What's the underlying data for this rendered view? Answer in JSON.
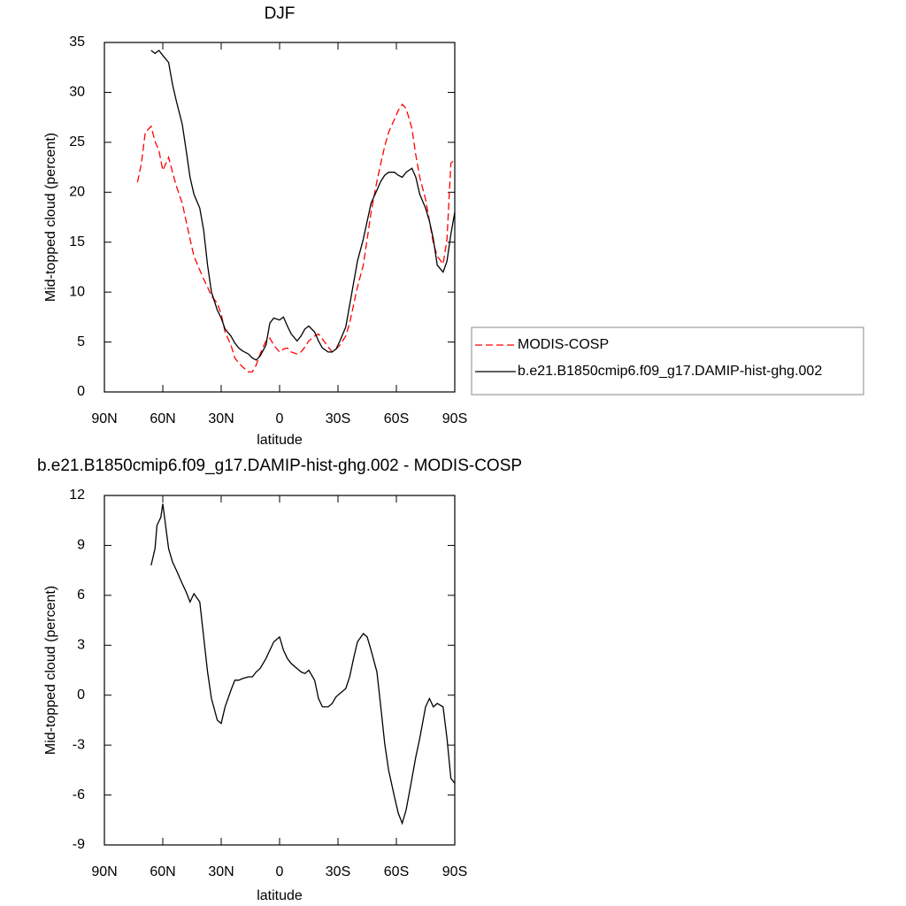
{
  "chart_data": [
    {
      "type": "line",
      "title": "DJF",
      "xlabel": "latitude",
      "ylabel": "Mid-topped cloud (percent)",
      "xlim": [
        90,
        -90
      ],
      "xticks": [
        {
          "value": 90,
          "label": "90N"
        },
        {
          "value": 60,
          "label": "60N"
        },
        {
          "value": 30,
          "label": "30N"
        },
        0,
        {
          "value": -30,
          "label": "30S"
        },
        {
          "value": -60,
          "label": "60S"
        },
        {
          "value": -90,
          "label": "90S"
        }
      ],
      "ylim": [
        0,
        35
      ],
      "yticks": [
        0,
        5,
        10,
        15,
        20,
        25,
        30,
        35
      ],
      "legend": "right",
      "x": [
        73,
        71,
        69,
        66,
        64,
        62,
        60,
        57,
        55,
        53,
        50,
        48,
        46,
        44,
        41,
        39,
        37,
        35,
        32,
        30,
        28,
        25,
        23,
        21,
        19,
        16,
        14,
        12,
        10,
        7,
        5,
        3,
        0,
        -2,
        -4,
        -6,
        -9,
        -11,
        -13,
        -15,
        -18,
        -20,
        -22,
        -25,
        -27,
        -29,
        -31,
        -34,
        -36,
        -38,
        -40,
        -43,
        -45,
        -47,
        -50,
        -52,
        -54,
        -56,
        -59,
        -61,
        -63,
        -65,
        -68,
        -70,
        -72,
        -75,
        -77,
        -79,
        -81,
        -84,
        -86,
        -88,
        -90
      ],
      "series": [
        {
          "name": "MODIS-COSP",
          "color": "#ff0000",
          "linestyle": "dashed",
          "values": [
            21.0,
            22.9,
            26.0,
            26.6,
            25.1,
            24.2,
            22.2,
            23.5,
            22.0,
            20.6,
            18.9,
            17.1,
            15.3,
            13.6,
            12.2,
            11.3,
            10.5,
            9.6,
            8.9,
            7.8,
            6.0,
            4.7,
            3.4,
            2.9,
            2.5,
            2.0,
            2.0,
            2.7,
            3.8,
            5.1,
            5.4,
            4.7,
            4.0,
            4.3,
            4.4,
            4.0,
            3.8,
            4.0,
            4.5,
            5.1,
            5.6,
            5.8,
            5.3,
            4.5,
            4.0,
            4.3,
            4.7,
            5.6,
            6.9,
            8.7,
            10.5,
            12.7,
            15.3,
            18.0,
            21.1,
            22.9,
            24.6,
            26.0,
            27.3,
            28.2,
            28.8,
            28.4,
            26.4,
            23.7,
            21.5,
            19.3,
            17.1,
            14.9,
            13.6,
            12.8,
            15.3,
            22.9,
            23.3
          ]
        },
        {
          "name": "b.e21.B1850cmip6.f09_g17.DAMIP-hist-ghg.002",
          "color": "#000000",
          "linestyle": "solid",
          "values": [
            null,
            null,
            null,
            34.2,
            33.9,
            34.2,
            33.7,
            33.0,
            30.8,
            29.1,
            26.8,
            24.2,
            21.5,
            19.8,
            18.4,
            16.2,
            12.7,
            10.0,
            8.2,
            7.4,
            6.3,
            5.6,
            4.9,
            4.4,
            4.1,
            3.8,
            3.4,
            3.2,
            3.6,
            4.7,
            6.9,
            7.4,
            7.2,
            7.5,
            6.6,
            5.8,
            5.1,
            5.6,
            6.3,
            6.6,
            6.0,
            5.1,
            4.4,
            4.0,
            4.0,
            4.3,
            5.1,
            6.5,
            8.7,
            10.9,
            13.1,
            15.3,
            17.1,
            18.9,
            20.2,
            21.1,
            21.7,
            22.0,
            22.0,
            21.7,
            21.5,
            22.0,
            22.4,
            21.5,
            19.8,
            18.4,
            17.1,
            15.3,
            12.7,
            12.0,
            13.1,
            15.8,
            18.0
          ]
        }
      ]
    },
    {
      "type": "line",
      "title": "b.e21.B1850cmip6.f09_g17.DAMIP-hist-ghg.002 - MODIS-COSP",
      "xlabel": "latitude",
      "ylabel": "Mid-topped cloud (percent)",
      "xlim": [
        90,
        -90
      ],
      "xticks": [
        {
          "value": 90,
          "label": "90N"
        },
        {
          "value": 60,
          "label": "60N"
        },
        {
          "value": 30,
          "label": "30N"
        },
        0,
        {
          "value": -30,
          "label": "30S"
        },
        {
          "value": -60,
          "label": "60S"
        },
        {
          "value": -90,
          "label": "90S"
        }
      ],
      "ylim": [
        -9,
        12
      ],
      "yticks": [
        -9,
        -6,
        -3,
        0,
        3,
        6,
        9,
        12
      ],
      "x": [
        66,
        64,
        63,
        61,
        60,
        57,
        55,
        53,
        50,
        48,
        46,
        44,
        41,
        39,
        37,
        35,
        32,
        30,
        28,
        25,
        23,
        21,
        19,
        16,
        14,
        12,
        10,
        7,
        5,
        3,
        0,
        -2,
        -4,
        -6,
        -9,
        -11,
        -13,
        -15,
        -18,
        -20,
        -22,
        -25,
        -27,
        -29,
        -31,
        -34,
        -36,
        -38,
        -40,
        -43,
        -45,
        -47,
        -50,
        -52,
        -54,
        -56,
        -59,
        -61,
        -63,
        -65,
        -68,
        -70,
        -72,
        -75,
        -77,
        -79,
        -81,
        -84,
        -86,
        -88,
        -90
      ],
      "series": [
        {
          "color": "#000000",
          "linestyle": "solid",
          "values": [
            7.8,
            8.8,
            10.2,
            10.7,
            11.5,
            8.8,
            8.0,
            7.5,
            6.7,
            6.2,
            5.6,
            6.1,
            5.6,
            3.5,
            1.4,
            -0.2,
            -1.5,
            -1.7,
            -0.7,
            0.3,
            0.9,
            0.9,
            1.0,
            1.1,
            1.1,
            1.4,
            1.6,
            2.2,
            2.7,
            3.2,
            3.5,
            2.7,
            2.2,
            1.9,
            1.6,
            1.4,
            1.3,
            1.5,
            0.9,
            -0.2,
            -0.7,
            -0.7,
            -0.5,
            -0.1,
            0.1,
            0.4,
            1.1,
            2.2,
            3.2,
            3.7,
            3.5,
            2.7,
            1.4,
            -0.7,
            -2.9,
            -4.5,
            -6.1,
            -7.1,
            -7.7,
            -6.9,
            -5.0,
            -3.7,
            -2.6,
            -0.7,
            -0.2,
            -0.7,
            -0.5,
            -0.7,
            -2.6,
            -5.0,
            -5.3
          ]
        }
      ]
    }
  ]
}
